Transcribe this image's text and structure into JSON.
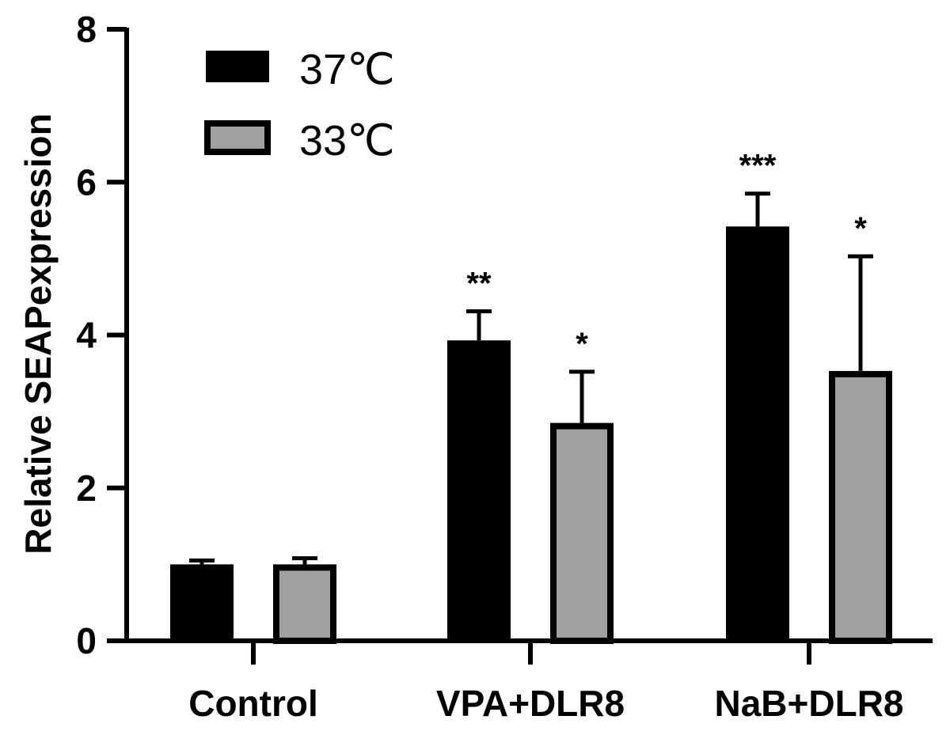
{
  "chart_data": {
    "type": "bar",
    "title": "",
    "xlabel": "",
    "ylabel": "Relative SEAPexpression",
    "ylim": [
      0,
      8
    ],
    "yticks": [
      "0",
      "2",
      "4",
      "6",
      "8"
    ],
    "grid": false,
    "legend_position": "top-left",
    "categories": [
      "Control",
      "VPA+DLR8",
      "NaB+DLR8"
    ],
    "series": [
      {
        "name": "37℃",
        "color": "#000000",
        "values": [
          1.0,
          3.93,
          5.42
        ],
        "error": [
          0.05,
          0.38,
          0.43
        ],
        "significance": [
          "",
          "**",
          "***"
        ]
      },
      {
        "name": "33℃",
        "color": "#a0a0a0",
        "values": [
          1.0,
          2.85,
          3.53
        ],
        "error": [
          0.08,
          0.67,
          1.5
        ],
        "significance": [
          "",
          "*",
          "*"
        ]
      }
    ]
  }
}
